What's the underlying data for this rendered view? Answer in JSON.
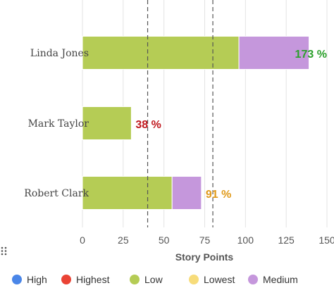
{
  "chart_data": {
    "type": "bar",
    "orientation": "horizontal",
    "stacked": true,
    "categories": [
      "Linda Jones",
      "Mark Taylor",
      "Robert Clark"
    ],
    "series": [
      {
        "name": "High",
        "color": "#4a86e8",
        "values": [
          0,
          0,
          0
        ]
      },
      {
        "name": "Highest",
        "color": "#ea4335",
        "values": [
          0,
          0,
          0
        ]
      },
      {
        "name": "Low",
        "color": "#b5cc55",
        "values": [
          96,
          30,
          55
        ]
      },
      {
        "name": "Lowest",
        "color": "#f7dc7a",
        "values": [
          0,
          0,
          0
        ]
      },
      {
        "name": "Medium",
        "color": "#c597dc",
        "values": [
          43,
          0,
          18
        ]
      }
    ],
    "bar_labels": [
      {
        "text": "173 %",
        "color": "#2ca02c"
      },
      {
        "text": "38 %",
        "color": "#c0181e"
      },
      {
        "text": "91 %",
        "color": "#e09a1a"
      }
    ],
    "reference_lines": [
      40,
      80
    ],
    "xlabel": "Story Points",
    "xlim": [
      0,
      150
    ],
    "xticks": [
      0,
      25,
      50,
      75,
      100,
      125,
      150
    ],
    "grid": true,
    "legend_position": "bottom"
  },
  "drag_handle_icon": "grip-dots-icon"
}
